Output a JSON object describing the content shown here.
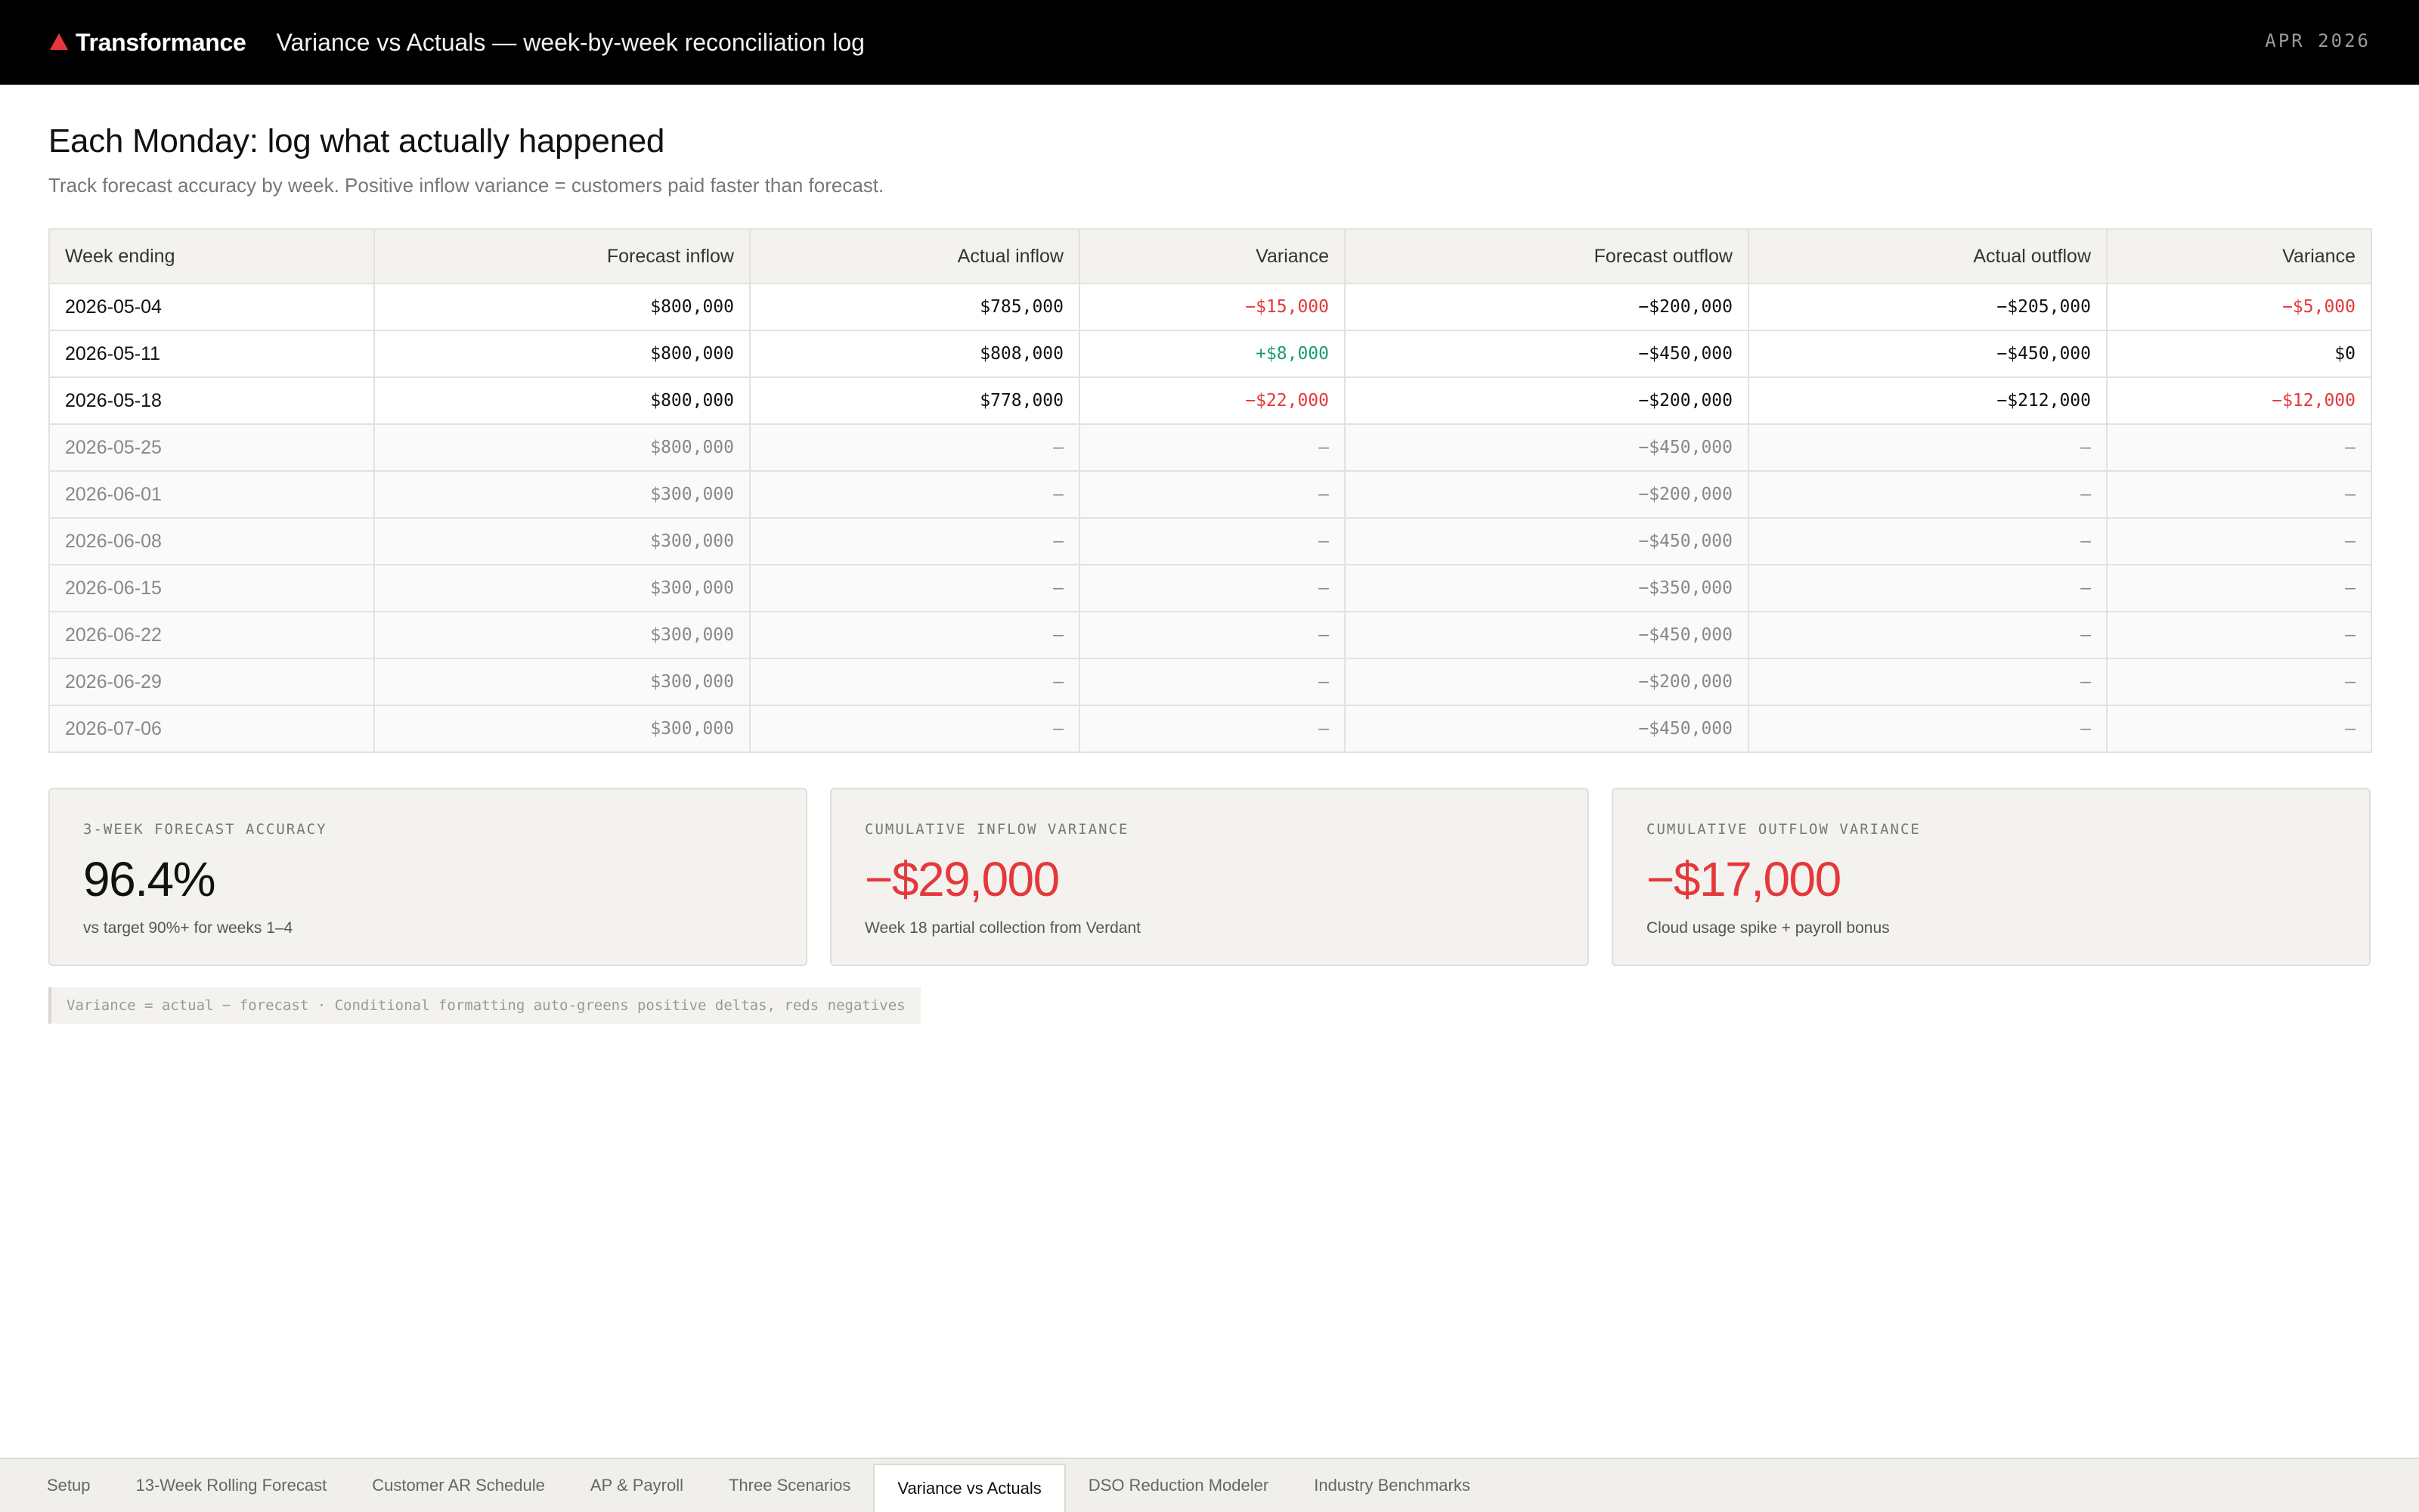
{
  "topbar": {
    "brand": "Transformance",
    "title": "Variance vs Actuals — week-by-week reconciliation log",
    "date": "APR 2026",
    "brand_color": "#e5383b"
  },
  "header": {
    "title": "Each Monday: log what actually happened",
    "subtitle": "Track forecast accuracy by week. Positive inflow variance = customers paid faster than forecast."
  },
  "table": {
    "columns": [
      "Week ending",
      "Forecast inflow",
      "Actual inflow",
      "Variance",
      "Forecast outflow",
      "Actual outflow",
      "Variance"
    ],
    "rows": [
      {
        "week": "2026-05-04",
        "fi": "$800,000",
        "ai": "$785,000",
        "vi": "−$15,000",
        "vi_state": "neg",
        "fo": "−$200,000",
        "ao": "−$205,000",
        "vo": "−$5,000",
        "vo_state": "neg"
      },
      {
        "week": "2026-05-11",
        "fi": "$800,000",
        "ai": "$808,000",
        "vi": "+$8,000",
        "vi_state": "pos",
        "fo": "−$450,000",
        "ao": "−$450,000",
        "vo": "$0",
        "vo_state": "zero"
      },
      {
        "week": "2026-05-18",
        "fi": "$800,000",
        "ai": "$778,000",
        "vi": "−$22,000",
        "vi_state": "neg",
        "fo": "−$200,000",
        "ao": "−$212,000",
        "vo": "−$12,000",
        "vo_state": "neg"
      },
      {
        "week": "2026-05-25",
        "fi": "$800,000",
        "ai": "—",
        "vi": "—",
        "vi_state": "none",
        "fo": "−$450,000",
        "ao": "—",
        "vo": "—",
        "vo_state": "none"
      },
      {
        "week": "2026-06-01",
        "fi": "$300,000",
        "ai": "—",
        "vi": "—",
        "vi_state": "none",
        "fo": "−$200,000",
        "ao": "—",
        "vo": "—",
        "vo_state": "none"
      },
      {
        "week": "2026-06-08",
        "fi": "$300,000",
        "ai": "—",
        "vi": "—",
        "vi_state": "none",
        "fo": "−$450,000",
        "ao": "—",
        "vo": "—",
        "vo_state": "none"
      },
      {
        "week": "2026-06-15",
        "fi": "$300,000",
        "ai": "—",
        "vi": "—",
        "vi_state": "none",
        "fo": "−$350,000",
        "ao": "—",
        "vo": "—",
        "vo_state": "none"
      },
      {
        "week": "2026-06-22",
        "fi": "$300,000",
        "ai": "—",
        "vi": "—",
        "vi_state": "none",
        "fo": "−$450,000",
        "ao": "—",
        "vo": "—",
        "vo_state": "none"
      },
      {
        "week": "2026-06-29",
        "fi": "$300,000",
        "ai": "—",
        "vi": "—",
        "vi_state": "none",
        "fo": "−$200,000",
        "ao": "—",
        "vo": "—",
        "vo_state": "none"
      },
      {
        "week": "2026-07-06",
        "fi": "$300,000",
        "ai": "—",
        "vi": "—",
        "vi_state": "none",
        "fo": "−$450,000",
        "ao": "—",
        "vo": "—",
        "vo_state": "none"
      }
    ]
  },
  "kpis": [
    {
      "label": "3-WEEK FORECAST ACCURACY",
      "value": "96.4%",
      "note": "vs target 90%+ for weeks 1–4"
    },
    {
      "label": "CUMULATIVE INFLOW VARIANCE",
      "value": "−$29,000",
      "note": "Week 18 partial collection from Verdant"
    },
    {
      "label": "CUMULATIVE OUTFLOW VARIANCE",
      "value": "−$17,000",
      "note": "Cloud usage spike + payroll bonus"
    }
  ],
  "footnote": "Variance = actual − forecast · Conditional formatting auto-greens positive deltas, reds negatives",
  "tabs": [
    "Setup",
    "13-Week Rolling Forecast",
    "Customer AR Schedule",
    "AP & Payroll",
    "Three Scenarios",
    "Variance vs Actuals",
    "DSO Reduction Modeler",
    "Industry Benchmarks"
  ],
  "active_tab": "Variance vs Actuals",
  "colors": {
    "negative": "#e5383b",
    "positive": "#1a9e6a"
  }
}
